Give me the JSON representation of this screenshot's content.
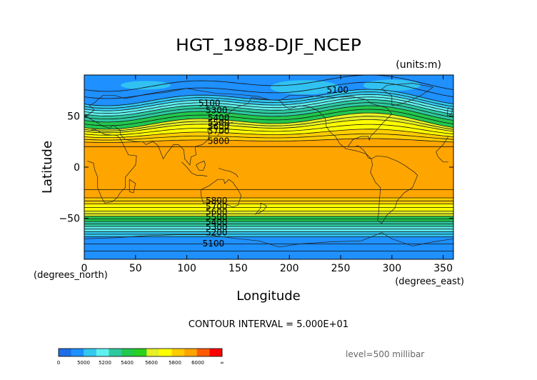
{
  "chart_data": {
    "type": "contour",
    "title": "HGT_1988-DJF_NCEP",
    "units_label": "(units:m)",
    "xlabel": "Longitude",
    "ylabel": "Latitude",
    "x_unit_label": "(degrees_east)",
    "y_unit_label": "(degrees_north)",
    "xlim": [
      0,
      360
    ],
    "ylim": [
      -90,
      90
    ],
    "x_ticks": [
      0,
      50,
      100,
      150,
      200,
      250,
      300,
      350
    ],
    "y_ticks": [
      -50,
      0,
      50
    ],
    "contour_interval_text": "CONTOUR INTERVAL = 5.000E+01",
    "level_text": "level=500 millibar",
    "contour_labels": [
      {
        "text": "5100",
        "lon": 122,
        "lat": 63
      },
      {
        "text": "5300",
        "lon": 129,
        "lat": 56
      },
      {
        "text": "5400",
        "lon": 131,
        "lat": 49
      },
      {
        "text": "5500",
        "lon": 131,
        "lat": 44
      },
      {
        "text": "5600",
        "lon": 131,
        "lat": 40
      },
      {
        "text": "5700",
        "lon": 131,
        "lat": 36
      },
      {
        "text": "5800",
        "lon": 131,
        "lat": 26
      },
      {
        "text": "5800",
        "lon": 129,
        "lat": -32
      },
      {
        "text": "5700",
        "lon": 129,
        "lat": -38
      },
      {
        "text": "5600",
        "lon": 129,
        "lat": -43
      },
      {
        "text": "5500",
        "lon": 129,
        "lat": -48
      },
      {
        "text": "5400",
        "lon": 129,
        "lat": -53
      },
      {
        "text": "5300",
        "lon": 129,
        "lat": -58
      },
      {
        "text": "5200",
        "lon": 129,
        "lat": -63
      },
      {
        "text": "5100",
        "lon": 126,
        "lat": -74
      },
      {
        "text": "5100",
        "lon": 247,
        "lat": 76
      }
    ],
    "colorbar": {
      "labels": [
        "0",
        "5000",
        "5200",
        "5400",
        "5600",
        "5800",
        "6000",
        "∞"
      ],
      "bins": [
        {
          "color": "#1d6ee6"
        },
        {
          "color": "#1e90ff"
        },
        {
          "color": "#33c8f0"
        },
        {
          "color": "#5ff0f0"
        },
        {
          "color": "#2ec9a0"
        },
        {
          "color": "#22c84e"
        },
        {
          "color": "#28d020"
        },
        {
          "color": "#e6f026"
        },
        {
          "color": "#ffff00"
        },
        {
          "color": "#ffcc00"
        },
        {
          "color": "#ffa500"
        },
        {
          "color": "#ff5a00"
        },
        {
          "color": "#ff0000"
        }
      ]
    },
    "bands": [
      {
        "lat_top": 90,
        "lat_bottom": 68,
        "color": "#1e90ff"
      },
      {
        "lat_top": 68,
        "lat_bottom": 63,
        "color": "#33c8f0"
      },
      {
        "lat_top": 63,
        "lat_bottom": 58,
        "color": "#5ff0f0"
      },
      {
        "lat_top": 58,
        "lat_bottom": 52,
        "color": "#2ec9a0"
      },
      {
        "lat_top": 52,
        "lat_bottom": 45,
        "color": "#22c84e"
      },
      {
        "lat_top": 45,
        "lat_bottom": 40,
        "color": "#e6f026"
      },
      {
        "lat_top": 40,
        "lat_bottom": 33,
        "color": "#ffff00"
      },
      {
        "lat_top": 33,
        "lat_bottom": 26,
        "color": "#ffcc00"
      },
      {
        "lat_top": 26,
        "lat_bottom": -30,
        "color": "#ffa500"
      },
      {
        "lat_top": -30,
        "lat_bottom": -36,
        "color": "#ffcc00"
      },
      {
        "lat_top": -36,
        "lat_bottom": -43,
        "color": "#ffff00"
      },
      {
        "lat_top": -43,
        "lat_bottom": -48,
        "color": "#e6f026"
      },
      {
        "lat_top": -48,
        "lat_bottom": -53,
        "color": "#22c84e"
      },
      {
        "lat_top": -53,
        "lat_bottom": -58,
        "color": "#2ec9a0"
      },
      {
        "lat_top": -58,
        "lat_bottom": -63,
        "color": "#5ff0f0"
      },
      {
        "lat_top": -63,
        "lat_bottom": -68,
        "color": "#33c8f0"
      },
      {
        "lat_top": -68,
        "lat_bottom": -90,
        "color": "#1e90ff"
      }
    ]
  }
}
